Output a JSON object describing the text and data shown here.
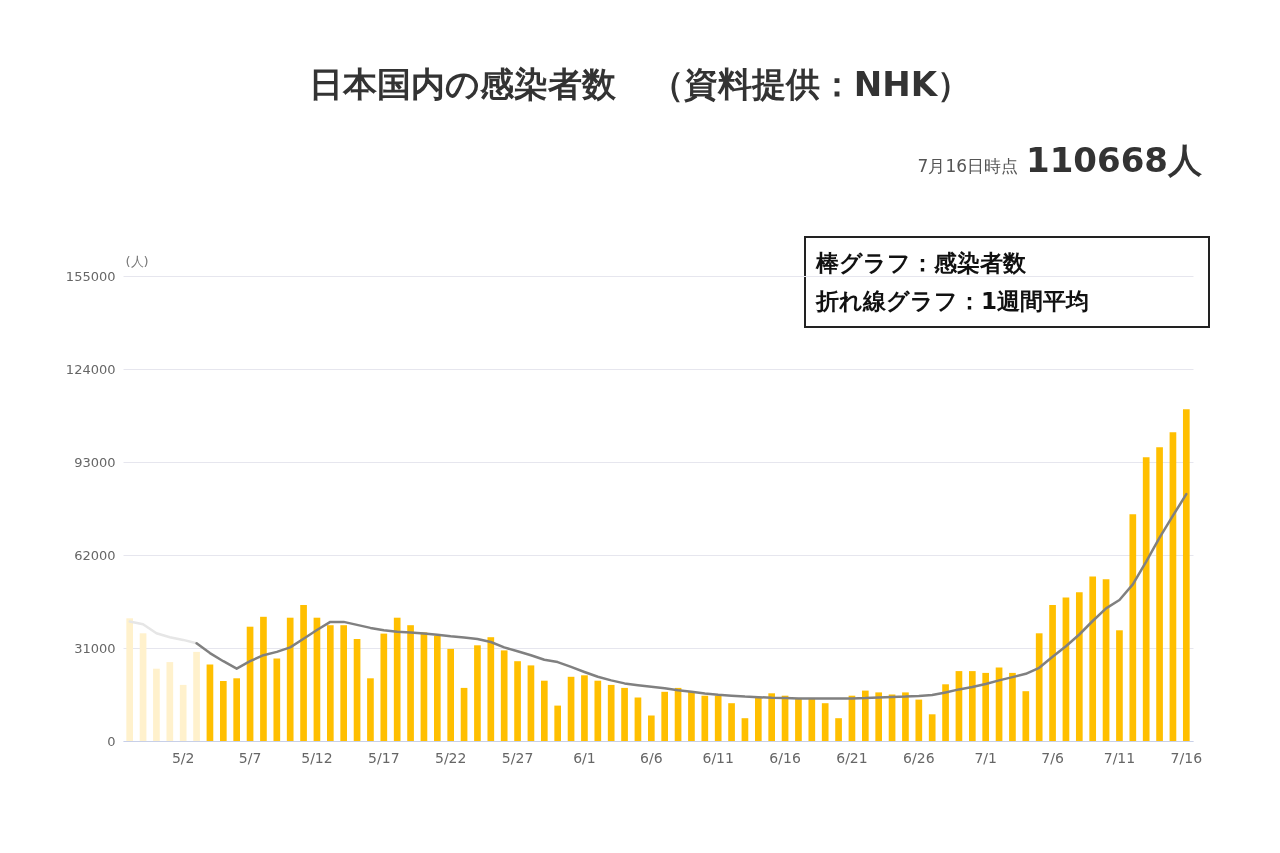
{
  "chart_data": {
    "type": "bar",
    "title": "日本国内の感染者数　（資料提供：NHK）",
    "subtitle": "7月16日時点 110668人",
    "ylabel": "(人)",
    "categories": [
      null,
      null,
      null,
      null,
      "5/2",
      null,
      null,
      null,
      null,
      "5/7",
      null,
      null,
      null,
      null,
      "5/12",
      null,
      null,
      null,
      null,
      "5/17",
      null,
      null,
      null,
      null,
      "5/22",
      null,
      null,
      null,
      null,
      "5/27",
      null,
      null,
      null,
      null,
      "6/1",
      null,
      null,
      null,
      null,
      "6/6",
      null,
      null,
      null,
      null,
      "6/11",
      null,
      null,
      null,
      null,
      "6/16",
      null,
      null,
      null,
      null,
      "6/21",
      null,
      null,
      null,
      null,
      "6/26",
      null,
      null,
      null,
      null,
      "7/1",
      null,
      null,
      null,
      null,
      "7/6",
      null,
      null,
      null,
      null,
      "7/11",
      null,
      null,
      null,
      null,
      "7/16"
    ],
    "series": [
      {
        "colors": [
          "#fff1cc",
          "#fff1cc",
          "#fff1cc",
          "#fff1cc",
          "#fff1cc",
          "#fff1cc",
          "#ffbf00",
          "#ffbf00",
          "#ffbf00",
          "#ffbf00",
          "#ffbf00",
          "#ffbf00",
          "#ffbf00",
          "#ffbf00",
          "#ffbf00",
          "#ffbf00",
          "#ffbf00",
          "#ffbf00",
          "#ffbf00",
          "#ffbf00",
          "#ffbf00",
          "#ffbf00",
          "#ffbf00",
          "#ffbf00",
          "#ffbf00",
          "#ffbf00",
          "#ffbf00",
          "#ffbf00",
          "#ffbf00",
          "#ffbf00",
          "#ffbf00",
          "#ffbf00",
          "#ffbf00",
          "#ffbf00",
          "#ffbf00",
          "#ffbf00",
          "#ffbf00",
          "#ffbf00",
          "#ffbf00",
          "#ffbf00",
          "#ffbf00",
          "#ffbf00",
          "#ffbf00",
          "#ffbf00",
          "#ffbf00",
          "#ffbf00",
          "#ffbf00",
          "#ffbf00",
          "#ffbf00",
          "#ffbf00",
          "#ffbf00",
          "#ffbf00",
          "#ffbf00",
          "#ffbf00",
          "#ffbf00",
          "#ffbf00",
          "#ffbf00",
          "#ffbf00",
          "#ffbf00",
          "#ffbf00",
          "#ffbf00",
          "#ffbf00",
          "#ffbf00",
          "#ffbf00",
          "#ffbf00",
          "#ffbf00",
          "#ffbf00",
          "#ffbf00",
          "#ffbf00",
          "#ffbf00",
          "#ffbf00",
          "#ffbf00",
          "#ffbf00",
          "#ffbf00",
          "#ffbf00",
          "#ffbf00",
          "#ffbf00",
          "#ffbf00",
          "#ffbf00",
          "#ffbf00"
        ],
        "values": [
          40900,
          35900,
          24100,
          26300,
          18700,
          29700,
          25500,
          20000,
          20900,
          38100,
          41400,
          27500,
          41100,
          45300,
          41100,
          38600,
          38600,
          34000,
          20900,
          35800,
          41100,
          38600,
          36200,
          35100,
          30700,
          17700,
          31900,
          34600,
          30200,
          26600,
          25200,
          20100,
          11800,
          21400,
          21900,
          20100,
          18700,
          17700,
          14500,
          8500,
          16400,
          17700,
          16400,
          15100,
          15100,
          12600,
          7600,
          14500,
          15900,
          15100,
          14000,
          14000,
          12600,
          7600,
          15100,
          16800,
          16200,
          15500,
          16200,
          13800,
          8900,
          18900,
          23300,
          23300,
          22700,
          24500,
          22700,
          16600,
          35900,
          45300,
          47800,
          49600,
          54800,
          53900,
          36900,
          75600,
          94600,
          97900,
          102900,
          110600
        ]
      },
      {
        "type": "line",
        "color": "#e6e6e6",
        "values": [
          39800,
          38900,
          35900,
          34600,
          33700,
          32600,
          null,
          null,
          null,
          null,
          null,
          null,
          null,
          null,
          null,
          null,
          null,
          null,
          null,
          null,
          null,
          null,
          null,
          null,
          null,
          null,
          null,
          null,
          null,
          null,
          null,
          null,
          null,
          null,
          null,
          null,
          null,
          null,
          null,
          null,
          null,
          null,
          null,
          null,
          null,
          null,
          null,
          null,
          null,
          null,
          null,
          null,
          null,
          null,
          null,
          null,
          null,
          null,
          null,
          null,
          null,
          null,
          null,
          null,
          null,
          null,
          null,
          null,
          null,
          null,
          null,
          null,
          null,
          null,
          null,
          null,
          null,
          null,
          null,
          null
        ]
      },
      {
        "type": "line",
        "color": "#808080",
        "values": [
          null,
          null,
          null,
          null,
          null,
          32600,
          29300,
          26600,
          24100,
          26600,
          28600,
          29700,
          31200,
          34100,
          37000,
          39700,
          39700,
          38700,
          37700,
          36900,
          36400,
          36200,
          35800,
          35400,
          34900,
          34500,
          34000,
          33000,
          31200,
          29900,
          28600,
          27100,
          26300,
          24700,
          23000,
          21400,
          20200,
          19200,
          18600,
          18100,
          17600,
          16900,
          16400,
          15800,
          15400,
          15100,
          14800,
          14600,
          14400,
          14300,
          14200,
          14200,
          14200,
          14200,
          14200,
          14300,
          14500,
          14700,
          14800,
          15000,
          15300,
          16200,
          17200,
          18000,
          19000,
          20200,
          21300,
          22400,
          24400,
          28100,
          31600,
          35500,
          40000,
          44200,
          47000,
          52200,
          59800,
          67800,
          75100,
          82300
        ]
      }
    ],
    "ylim": [
      0,
      155000
    ],
    "yticks": [
      0,
      31000,
      62000,
      93000,
      124000,
      155000
    ],
    "grid": "y",
    "line_style": "solid",
    "marker": "none",
    "annotations": [
      "棒グラフ：感染者数",
      "折れ線グラフ：1週間平均"
    ]
  }
}
